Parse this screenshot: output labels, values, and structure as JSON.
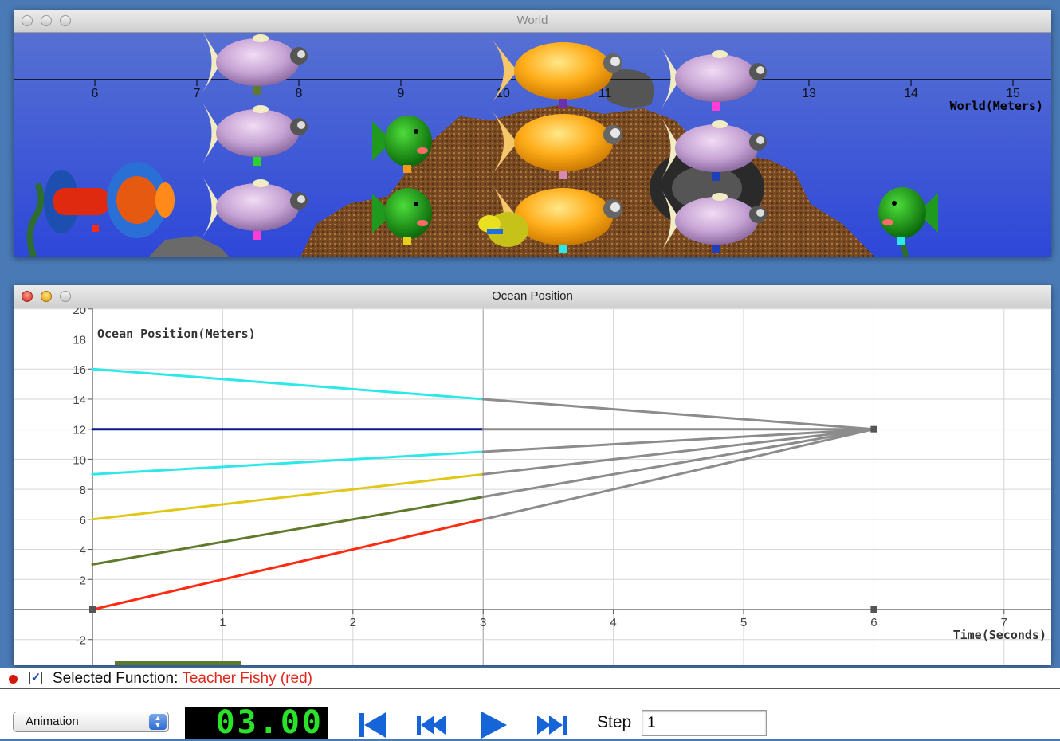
{
  "world_window": {
    "title": "World",
    "axis_label": "World(Meters)",
    "axis_ticks": [
      "6",
      "7",
      "8",
      "9",
      "10",
      "11",
      "12",
      "13",
      "14",
      "15"
    ],
    "colors": {
      "water_top": "#4b63c9",
      "water_bottom": "#2d4ad6",
      "sand": "#8a5a2b"
    }
  },
  "ocean_window": {
    "title": "Ocean Position"
  },
  "chart_data": {
    "type": "line",
    "ylabel": "Ocean Position(Meters)",
    "xlabel": "Time(Seconds)",
    "xlim": [
      0,
      7.5
    ],
    "ylim": [
      -3.4,
      20
    ],
    "x_ticks": [
      "1",
      "2",
      "3",
      "4",
      "5",
      "6",
      "7"
    ],
    "y_ticks": [
      "-2",
      "2",
      "4",
      "6",
      "8",
      "10",
      "12",
      "14",
      "16",
      "18",
      "20"
    ],
    "grid": true,
    "series": [
      {
        "color": "#ff2a10",
        "points": [
          [
            0,
            0
          ],
          [
            3,
            6
          ]
        ]
      },
      {
        "color": "#5f7a2a",
        "points": [
          [
            0,
            3
          ],
          [
            3,
            7.5
          ]
        ]
      },
      {
        "color": "#e0c81a",
        "points": [
          [
            0,
            6
          ],
          [
            3,
            9
          ]
        ]
      },
      {
        "color": "#2de8e8",
        "points": [
          [
            0,
            9
          ],
          [
            3,
            10.5
          ]
        ]
      },
      {
        "color": "#0a1a8c",
        "points": [
          [
            0,
            12
          ],
          [
            3,
            12
          ]
        ]
      },
      {
        "color": "#2de8e8",
        "points": [
          [
            0,
            16
          ],
          [
            3,
            14
          ]
        ]
      },
      {
        "color": "#8c8c8c",
        "points": [
          [
            3,
            6
          ],
          [
            6,
            12
          ]
        ]
      },
      {
        "color": "#8c8c8c",
        "points": [
          [
            3,
            7.5
          ],
          [
            6,
            12
          ]
        ]
      },
      {
        "color": "#8c8c8c",
        "points": [
          [
            3,
            9
          ],
          [
            6,
            12
          ]
        ]
      },
      {
        "color": "#8c8c8c",
        "points": [
          [
            3,
            10.5
          ],
          [
            6,
            12
          ]
        ]
      },
      {
        "color": "#8c8c8c",
        "points": [
          [
            3,
            12
          ],
          [
            6,
            12
          ]
        ]
      },
      {
        "color": "#8c8c8c",
        "points": [
          [
            3,
            14
          ],
          [
            6,
            12
          ]
        ]
      }
    ],
    "markers": [
      [
        0,
        0
      ],
      [
        6,
        12
      ],
      [
        6,
        0
      ]
    ]
  },
  "status": {
    "selected_label": "Selected Function: ",
    "selected_value": "Teacher Fishy (red)",
    "checkbox_checked": true
  },
  "controls": {
    "mode": "Animation",
    "time": "03.00",
    "step_label": "Step",
    "step_value": "1"
  }
}
